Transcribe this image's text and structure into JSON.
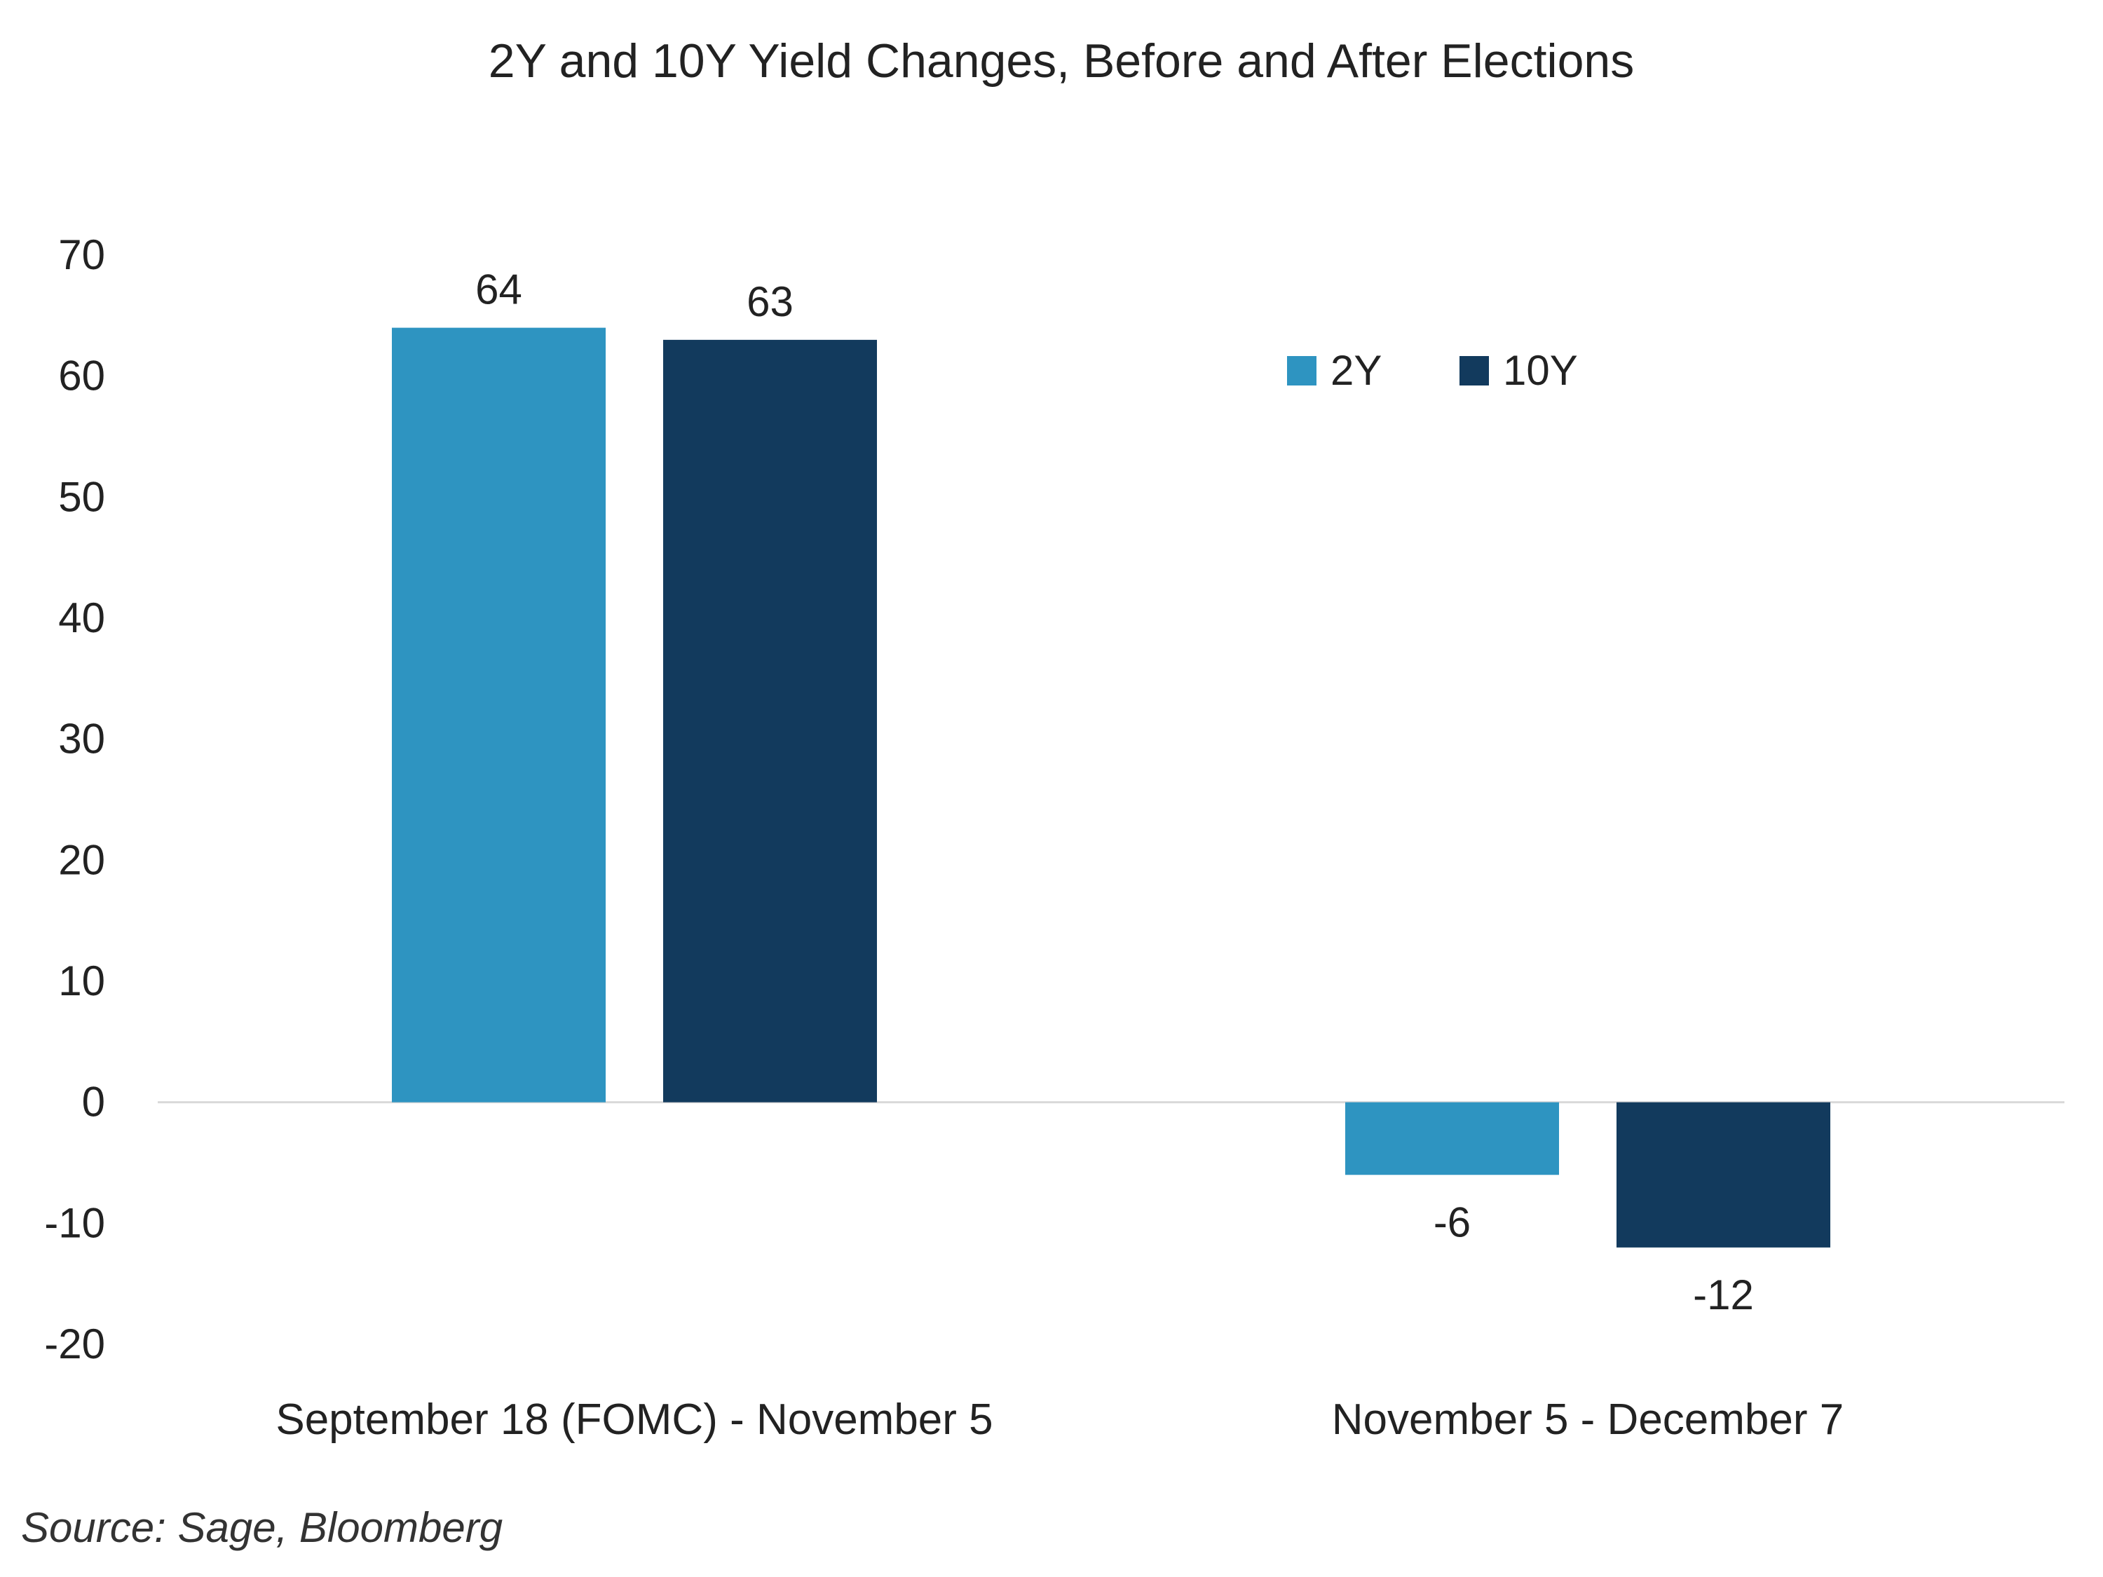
{
  "chart_data": {
    "type": "bar",
    "title": "2Y and 10Y Yield Changes, Before and After Elections",
    "categories": [
      "September 18 (FOMC) - November 5",
      "November 5 - December 7"
    ],
    "series": [
      {
        "name": "2Y",
        "values": [
          64,
          -6
        ],
        "color": "#2E94C1"
      },
      {
        "name": "10Y",
        "values": [
          63,
          -12
        ],
        "color": "#123A5D"
      }
    ],
    "ylim": [
      -20,
      70
    ],
    "yticks": [
      70,
      60,
      50,
      40,
      30,
      20,
      10,
      0,
      -10,
      -20
    ],
    "grid": false,
    "legend": "top-right",
    "source": "Source: Sage, Bloomberg"
  }
}
